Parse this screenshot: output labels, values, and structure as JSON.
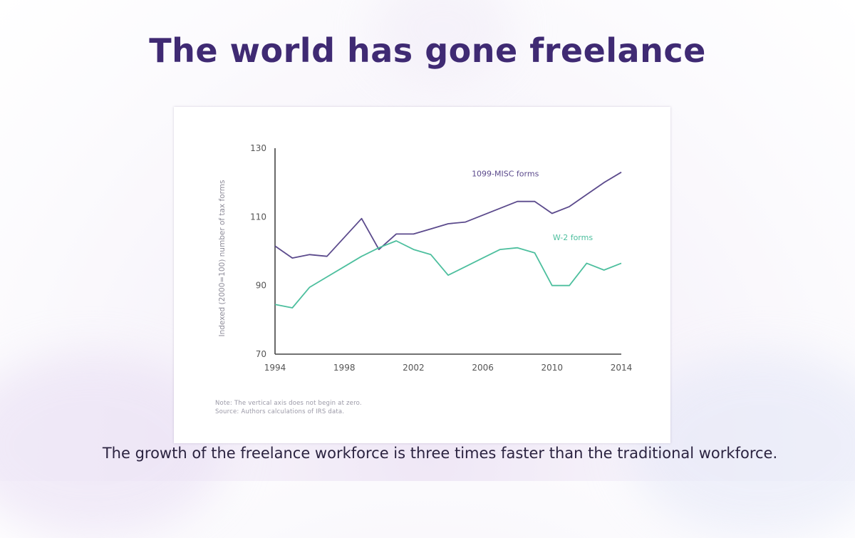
{
  "slide": {
    "title": "The world has gone freelance",
    "caption": "The growth of the freelance workforce is three times faster than the traditional workforce.",
    "note_line1": "Note: The vertical axis does not begin at zero.",
    "note_line2": "Source: Authors calculations of IRS data."
  },
  "colors": {
    "title": "#3f2a73",
    "misc_line": "#5b4a8c",
    "w2_line": "#4dbf9e",
    "axis": "#444444",
    "tick_text": "#555555"
  },
  "chart_data": {
    "type": "line",
    "title": "",
    "xlabel": "",
    "ylabel": "Indexed (2000=100) number of tax forms",
    "xlim": [
      1994,
      2014
    ],
    "ylim": [
      70,
      130
    ],
    "x_ticks": [
      1994,
      1998,
      2002,
      2006,
      2010,
      2014
    ],
    "y_ticks": [
      70,
      90,
      110,
      130
    ],
    "grid": false,
    "legend": "inline labels",
    "x": [
      1994,
      1995,
      1996,
      1997,
      1998,
      1999,
      2000,
      2001,
      2002,
      2003,
      2004,
      2005,
      2006,
      2007,
      2008,
      2009,
      2010,
      2011,
      2012,
      2013,
      2014
    ],
    "series": [
      {
        "name": "1099-MISC forms",
        "color": "#5b4a8c",
        "values": [
          101.5,
          98,
          99,
          98.5,
          104,
          109.5,
          100.5,
          105,
          105,
          106.5,
          108,
          108.5,
          110.5,
          112.5,
          114.5,
          114.5,
          111,
          113,
          116.5,
          120,
          123
        ]
      },
      {
        "name": "W-2 forms",
        "color": "#4dbf9e",
        "values": [
          84.5,
          83.5,
          89.5,
          92.5,
          95.5,
          98.5,
          101,
          103,
          100.5,
          99,
          93,
          95.5,
          98,
          100.5,
          101,
          99.5,
          90,
          90,
          96.5,
          94.5,
          96.5
        ]
      }
    ]
  }
}
